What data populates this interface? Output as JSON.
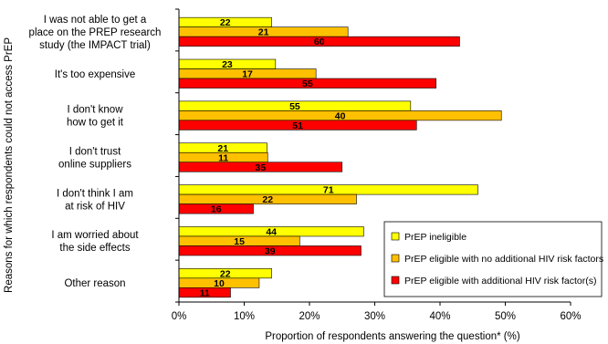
{
  "chart_data": {
    "type": "bar",
    "orientation": "horizontal",
    "categories": [
      [
        "I was not able to get a",
        "place on the PREP research",
        "study (the IMPACT trial)"
      ],
      [
        "It's too expensive"
      ],
      [
        "I don't know",
        "how to get it"
      ],
      [
        "I don't trust",
        "online suppliers"
      ],
      [
        "I don't think I am",
        "at risk of HIV"
      ],
      [
        "I am worried about",
        "the side effects"
      ],
      [
        "Other reason"
      ]
    ],
    "series": [
      {
        "name": "PrEP ineligible",
        "color": "#FFFF00",
        "values_pct": [
          14.2,
          14.8,
          35.5,
          13.5,
          45.8,
          28.3,
          14.2
        ],
        "labels": [
          "22",
          "23",
          "55",
          "21",
          "71",
          "44",
          "22"
        ]
      },
      {
        "name": "PrEP eligible with no additional HIV risk factors",
        "color": "#FFC000",
        "values_pct": [
          25.9,
          21.0,
          49.4,
          13.6,
          27.2,
          18.5,
          12.3
        ],
        "labels": [
          "21",
          "17",
          "40",
          "11",
          "22",
          "15",
          "10"
        ]
      },
      {
        "name": "PrEP eligible with additional HIV risk factor(s)",
        "color": "#FF0000",
        "values_pct": [
          43.0,
          39.4,
          36.4,
          25.0,
          11.4,
          27.9,
          7.9
        ],
        "labels": [
          "60",
          "55",
          "51",
          "35",
          "16",
          "39",
          "11"
        ]
      }
    ],
    "xlabel": "Proportion of respondents answering the question* (%)",
    "ylabel": "Reasons for which respondents could not access PrEP",
    "xlim": [
      0,
      60
    ],
    "xticks": [
      "0%",
      "10%",
      "20%",
      "30%",
      "40%",
      "50%",
      "60%"
    ],
    "grid": false,
    "legend_position": "lower-right"
  }
}
